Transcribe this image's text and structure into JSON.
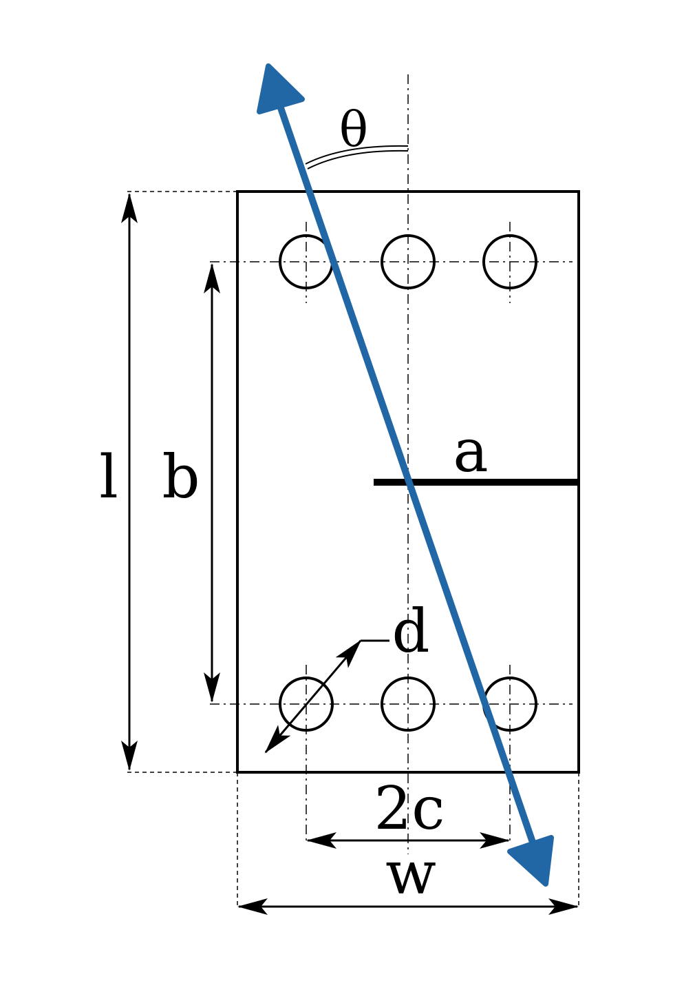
{
  "labels": {
    "theta": "θ",
    "a": "a",
    "l": "l",
    "b": "b",
    "d": "d",
    "two_c": "2c",
    "w": "w"
  },
  "colors": {
    "load_arrow": "#2166a5",
    "lines": "#000000",
    "background": "#ffffff"
  },
  "icons": {
    "load_arrow": "double-headed-arrow",
    "holes": "circle"
  },
  "holes": {
    "rows": 2,
    "per_row": 3
  }
}
